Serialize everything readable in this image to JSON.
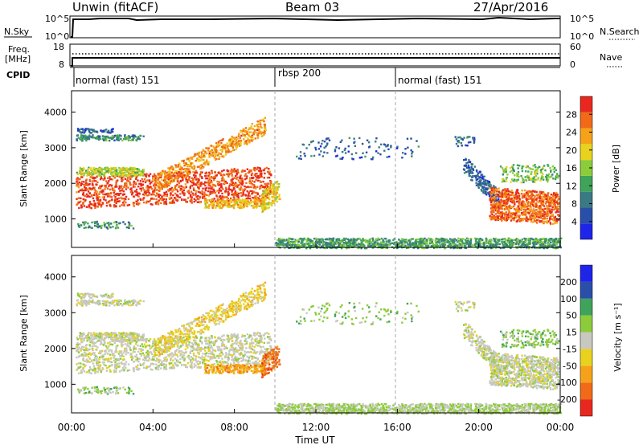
{
  "header": {
    "station": "Unwin (fitACF)",
    "beam": "Beam 03",
    "date": "27/Apr/2016"
  },
  "left_labels": {
    "nsky": "N.Sky",
    "freq1": "Freq.",
    "freq2": "[MHz]",
    "cpid": "CPID"
  },
  "right_labels": {
    "nsearch": "N.Search",
    "nave": "Nave"
  },
  "xaxis": {
    "label": "Time UT",
    "ticks": [
      "00:00",
      "04:00",
      "08:00",
      "12:00",
      "16:00",
      "20:00",
      "00:00"
    ]
  },
  "cpid_segments": [
    {
      "label": "normal (fast) 151"
    },
    {
      "label": "rbsp 200"
    },
    {
      "label": "normal (fast) 151"
    }
  ],
  "colors": {
    "power": [
      "#1e24e8",
      "#2a4fa8",
      "#3a7a84",
      "#3fa35a",
      "#8ccc3a",
      "#e8d21e",
      "#f5a21a",
      "#f06a18",
      "#e8281e"
    ],
    "velocity": [
      "#e8281e",
      "#f06a18",
      "#f5a21a",
      "#e8d21e",
      "#c8c8c0",
      "#8ccc3a",
      "#3fa35a",
      "#2a4fa8",
      "#1e24e8"
    ]
  },
  "chart_data": [
    {
      "type": "line",
      "title": "Unwin (fitACF)",
      "subtitle": "N.Sky / N.Search",
      "x_range": [
        "00:00",
        "00:00"
      ],
      "left_ticks": [
        "10^5",
        "10^0"
      ],
      "right_ticks": [
        "10^5",
        "10^0"
      ]
    },
    {
      "type": "line",
      "subtitle": "Freq. [MHz] / Nave",
      "left_ticks": [
        "18",
        "8"
      ],
      "right_ticks": [
        "60",
        "0"
      ]
    },
    {
      "type": "heatmap",
      "ylabel": "Slant Range [km]",
      "xlabel": "Time UT",
      "yticks": [
        "1000",
        "2000",
        "3000",
        "4000"
      ],
      "ylim": [
        200,
        4600
      ],
      "colorbar": {
        "label": "Power [dB]",
        "ticks": [
          "4",
          "8",
          "12",
          "16",
          "20",
          "24",
          "28"
        ],
        "range": [
          0,
          32
        ]
      },
      "grid": false
    },
    {
      "type": "heatmap",
      "ylabel": "Slant Range [km]",
      "xlabel": "Time UT",
      "yticks": [
        "1000",
        "2000",
        "3000",
        "4000"
      ],
      "ylim": [
        200,
        4600
      ],
      "colorbar": {
        "label": "Velocity [m s⁻¹]",
        "ticks": [
          "-200",
          "-100",
          "-50",
          "-15",
          "15",
          "50",
          "100",
          "200"
        ]
      },
      "grid": false
    }
  ]
}
